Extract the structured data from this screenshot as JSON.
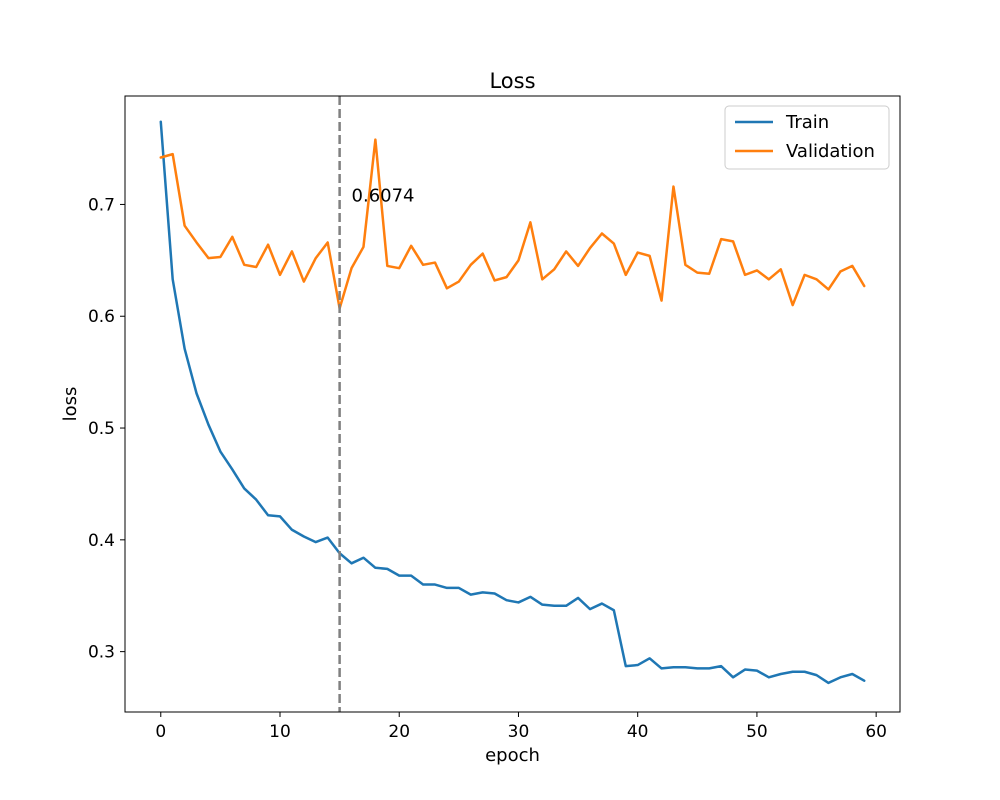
{
  "chart_data": {
    "type": "line",
    "title": "Loss",
    "xlabel": "epoch",
    "ylabel": "loss",
    "xlim": [
      -3,
      62
    ],
    "ylim": [
      0.246,
      0.797
    ],
    "xticks": [
      0,
      10,
      20,
      30,
      40,
      50,
      60
    ],
    "yticks": [
      0.3,
      0.4,
      0.5,
      0.6,
      0.7
    ],
    "ytick_labels": [
      "0.3",
      "0.4",
      "0.5",
      "0.6",
      "0.7"
    ],
    "grid": false,
    "legend": "top-right",
    "x": [
      0,
      1,
      2,
      3,
      4,
      5,
      6,
      7,
      8,
      9,
      10,
      11,
      12,
      13,
      14,
      15,
      16,
      17,
      18,
      19,
      20,
      21,
      22,
      23,
      24,
      25,
      26,
      27,
      28,
      29,
      30,
      31,
      32,
      33,
      34,
      35,
      36,
      37,
      38,
      39,
      40,
      41,
      42,
      43,
      44,
      45,
      46,
      47,
      48,
      49,
      50,
      51,
      52,
      53,
      54,
      55,
      56,
      57,
      58,
      59
    ],
    "series": [
      {
        "name": "Train",
        "color": "#1f77b4",
        "values": [
          0.774,
          0.633,
          0.571,
          0.531,
          0.503,
          0.479,
          0.463,
          0.446,
          0.436,
          0.422,
          0.421,
          0.409,
          0.403,
          0.398,
          0.402,
          0.388,
          0.379,
          0.384,
          0.375,
          0.374,
          0.368,
          0.368,
          0.36,
          0.36,
          0.357,
          0.357,
          0.351,
          0.353,
          0.352,
          0.346,
          0.344,
          0.349,
          0.342,
          0.341,
          0.341,
          0.348,
          0.338,
          0.343,
          0.337,
          0.287,
          0.288,
          0.294,
          0.285,
          0.286,
          0.286,
          0.285,
          0.285,
          0.287,
          0.277,
          0.284,
          0.283,
          0.277,
          0.28,
          0.282,
          0.282,
          0.279,
          0.272,
          0.277,
          0.28,
          0.274
        ]
      },
      {
        "name": "Validation",
        "color": "#ff7f0e",
        "values": [
          0.742,
          0.745,
          0.681,
          0.666,
          0.652,
          0.653,
          0.671,
          0.646,
          0.644,
          0.664,
          0.637,
          0.658,
          0.631,
          0.652,
          0.666,
          0.607,
          0.643,
          0.662,
          0.758,
          0.645,
          0.643,
          0.663,
          0.646,
          0.648,
          0.625,
          0.631,
          0.646,
          0.656,
          0.632,
          0.635,
          0.65,
          0.684,
          0.633,
          0.642,
          0.658,
          0.645,
          0.661,
          0.674,
          0.665,
          0.637,
          0.657,
          0.654,
          0.614,
          0.716,
          0.646,
          0.639,
          0.638,
          0.669,
          0.667,
          0.637,
          0.641,
          0.633,
          0.642,
          0.61,
          0.637,
          0.633,
          0.624,
          0.64,
          0.645,
          0.627
        ]
      }
    ],
    "vline": {
      "x": 15,
      "color": "#808080"
    },
    "annotation": {
      "text": "0.6074",
      "x": 16,
      "y": 0.708
    }
  }
}
